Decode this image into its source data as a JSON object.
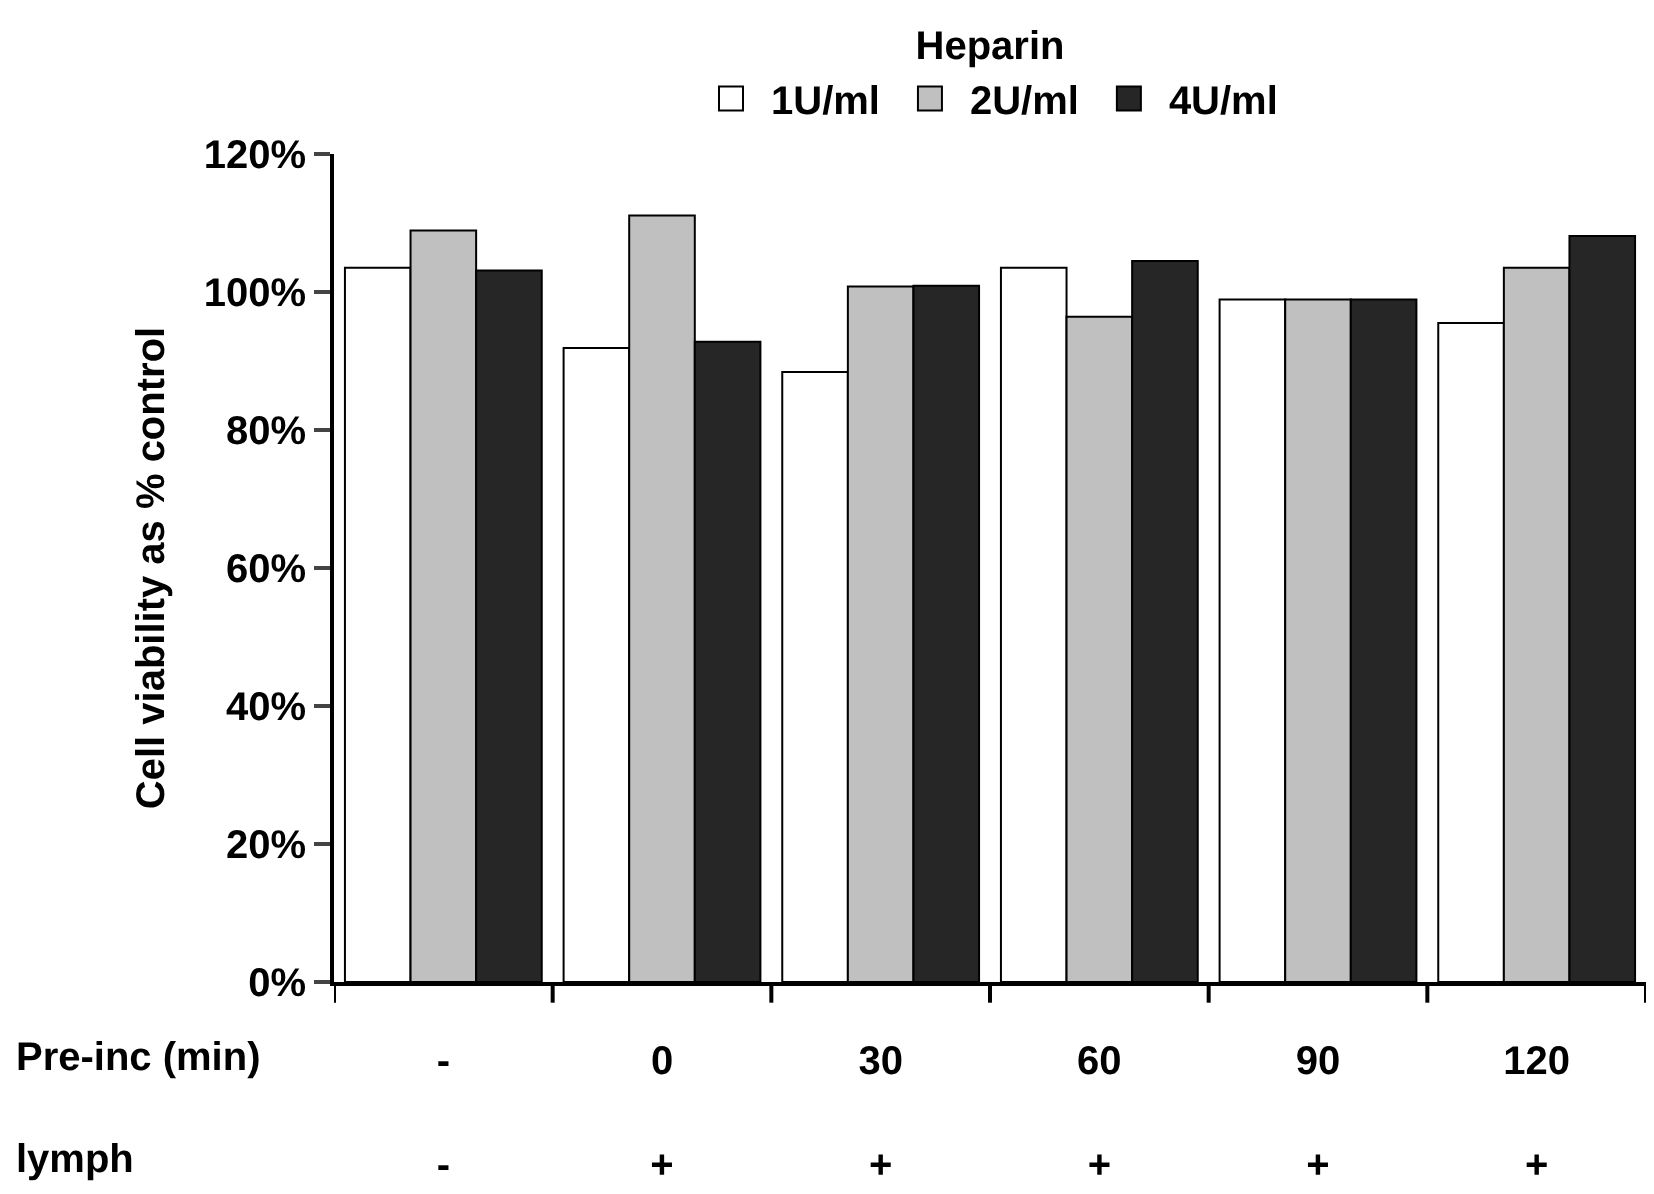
{
  "chart_data": {
    "type": "bar",
    "ylabel": "Cell viability as % control",
    "legend_title": "Heparin",
    "categories": [
      "-\n-",
      "0\n+",
      "30\n+",
      "60\n+",
      "90\n+",
      "120\n+"
    ],
    "series": [
      {
        "name": "1U/ml",
        "color": "#ffffff",
        "values": [
          103.5,
          91.9,
          88.4,
          103.5,
          98.9,
          95.5
        ]
      },
      {
        "name": "2U/ml",
        "color": "#c0c0c0",
        "values": [
          108.9,
          111.1,
          100.8,
          96.4,
          98.9,
          103.5
        ]
      },
      {
        "name": "4U/ml",
        "color": "#262626",
        "values": [
          103.1,
          92.8,
          100.9,
          104.5,
          98.9,
          108.1
        ]
      }
    ],
    "ylim": [
      0,
      120
    ],
    "yticks": [
      {
        "value": 0,
        "label": "0%"
      },
      {
        "value": 20,
        "label": "20%"
      },
      {
        "value": 40,
        "label": "40%"
      },
      {
        "value": 60,
        "label": "60%"
      },
      {
        "value": 80,
        "label": "80%"
      },
      {
        "value": 100,
        "label": "100%"
      },
      {
        "value": 120,
        "label": "120%"
      }
    ],
    "annotations": [
      "Pre-inc (min)",
      "lymph"
    ],
    "legend": "top",
    "grid": false
  }
}
